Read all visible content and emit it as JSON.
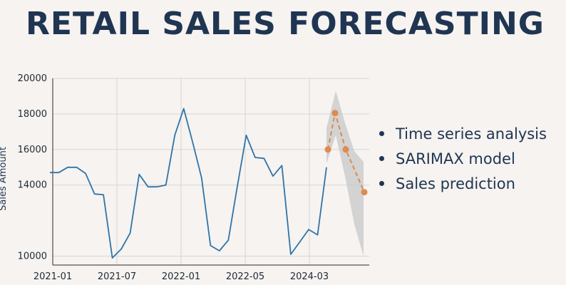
{
  "title": "RETAIL SALES FORECASTING",
  "bullets": [
    "Time series analysis",
    "SARIMAX model",
    "Sales prediction"
  ],
  "colors": {
    "title": "#1f3552",
    "history": "#2f74a8",
    "forecast": "#df8a4e",
    "band": "#c9cbcb",
    "grid": "#d7d7d7"
  },
  "chart_data": {
    "type": "line",
    "ylabel": "Sales Amount",
    "xlabel": "",
    "ylim": [
      9500,
      20000
    ],
    "yticks": [
      10000,
      14000,
      16000,
      18000,
      20000
    ],
    "xticks": [
      "2021-01",
      "2021-07",
      "2022-01",
      "2022-05",
      "2024-03"
    ],
    "grid": true,
    "series": [
      {
        "kind": "history",
        "values": [
          14700,
          14700,
          15000,
          15000,
          14650,
          13500,
          13450,
          9900,
          10400,
          11300,
          14600,
          13900,
          13900,
          14000,
          16800,
          18300,
          16400,
          14400,
          10600,
          10300,
          10900,
          13900,
          16800,
          15550,
          15500,
          14500,
          15100,
          10100,
          10800,
          11500,
          11200,
          15000
        ],
        "x_index": [
          0,
          1,
          2,
          3,
          4,
          5,
          6,
          7,
          8,
          9,
          10,
          11,
          12,
          13,
          14,
          15,
          16,
          17,
          18,
          19,
          20,
          21,
          22,
          23,
          24,
          25,
          26,
          27,
          28,
          29,
          30,
          31
        ]
      },
      {
        "kind": "forecast",
        "values": [
          16000,
          18050,
          16000,
          13600
        ],
        "x_index": [
          31,
          32,
          33,
          34
        ],
        "band_upper": [
          17200,
          19300,
          17500,
          15900,
          15300
        ],
        "band_lower": [
          15200,
          16800,
          14500,
          11800,
          10000
        ],
        "band_x": [
          31,
          32,
          33,
          34,
          35
        ]
      }
    ]
  }
}
